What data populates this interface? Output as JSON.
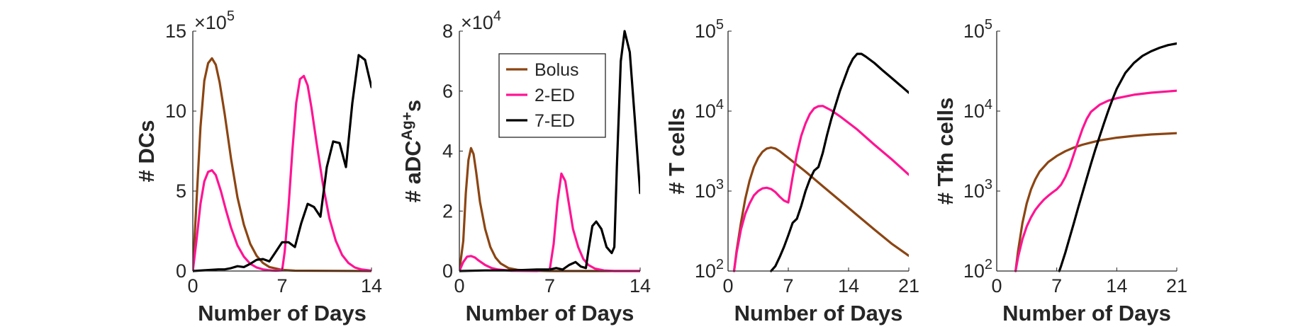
{
  "chart_data": [
    {
      "type": "line",
      "ylabel": "# DCs",
      "xlabel": "Number of Days",
      "y_exponent_label": "×10",
      "y_exponent": "5",
      "xlim": [
        0,
        14
      ],
      "ylim": [
        0,
        15
      ],
      "xticks": [
        0,
        7,
        14
      ],
      "yticks": [
        0,
        5,
        10,
        15
      ],
      "y_scale": "linear",
      "series": [
        {
          "name": "Bolus",
          "color": "#8B4513",
          "x": [
            0,
            0.3,
            0.6,
            0.9,
            1.2,
            1.5,
            1.8,
            2.1,
            2.5,
            3.0,
            3.5,
            4.0,
            4.5,
            5.0,
            5.5,
            6.0,
            7.0,
            8.0,
            14
          ],
          "y": [
            0,
            4.5,
            9.0,
            11.9,
            13.0,
            13.3,
            12.9,
            11.8,
            9.8,
            7.0,
            4.6,
            2.9,
            1.7,
            0.95,
            0.5,
            0.25,
            0.07,
            0.02,
            0
          ]
        },
        {
          "name": "2-ED",
          "color": "#FF1493",
          "x": [
            0,
            0.3,
            0.6,
            0.9,
            1.2,
            1.5,
            1.8,
            2.2,
            2.6,
            3.0,
            3.5,
            4.0,
            4.5,
            5.0,
            5.5,
            6.0,
            6.5,
            7.0,
            7.2,
            7.5,
            7.8,
            8.1,
            8.4,
            8.7,
            9.0,
            9.3,
            9.7,
            10.2,
            10.7,
            11.2,
            11.7,
            12.2,
            12.7,
            13.2,
            14
          ],
          "y": [
            0,
            2.0,
            4.2,
            5.6,
            6.2,
            6.3,
            6.0,
            5.0,
            3.8,
            2.7,
            1.6,
            0.9,
            0.45,
            0.22,
            0.1,
            0.05,
            0.02,
            0.05,
            1.2,
            4.0,
            7.5,
            10.5,
            12.0,
            12.2,
            11.6,
            10.2,
            8.0,
            5.4,
            3.3,
            1.9,
            1.0,
            0.5,
            0.22,
            0.1,
            0.02
          ]
        },
        {
          "name": "7-ED",
          "color": "#000000",
          "x": [
            0,
            1,
            2,
            2.5,
            3,
            3.5,
            4,
            4.5,
            5,
            5.5,
            6,
            6.5,
            7,
            7.5,
            8,
            8.5,
            9,
            9.5,
            10,
            10.5,
            11,
            11.5,
            12,
            12.5,
            13,
            13.5,
            14
          ],
          "y": [
            0,
            0.05,
            0.1,
            0.1,
            0.18,
            0.3,
            0.25,
            0.45,
            0.7,
            0.75,
            0.6,
            1.2,
            1.8,
            1.8,
            1.5,
            3.0,
            4.2,
            4.0,
            3.4,
            6.5,
            8.1,
            8.0,
            6.5,
            10.5,
            13.5,
            13.2,
            11.5
          ]
        }
      ]
    },
    {
      "type": "line",
      "ylabel_main": "# aDC",
      "ylabel_sup": "Ag+",
      "ylabel_end": "s",
      "xlabel": "Number of Days",
      "y_exponent_label": "×10",
      "y_exponent": "4",
      "xlim": [
        0,
        14
      ],
      "ylim": [
        0,
        8
      ],
      "xticks": [
        0,
        7,
        14
      ],
      "yticks": [
        0,
        2,
        4,
        6,
        8
      ],
      "y_scale": "linear",
      "legend": {
        "placement": "top-left",
        "entries": [
          "Bolus",
          "2-ED",
          "7-ED"
        ]
      },
      "series": [
        {
          "name": "Bolus",
          "color": "#8B4513",
          "x": [
            0,
            0.3,
            0.5,
            0.7,
            0.9,
            1.1,
            1.3,
            1.6,
            2.0,
            2.4,
            2.8,
            3.2,
            3.8,
            4.5,
            5.5,
            7,
            14
          ],
          "y": [
            0,
            1.0,
            2.6,
            3.7,
            4.1,
            3.9,
            3.3,
            2.3,
            1.4,
            0.8,
            0.45,
            0.25,
            0.1,
            0.04,
            0.01,
            0,
            0
          ]
        },
        {
          "name": "2-ED",
          "color": "#FF1493",
          "x": [
            0,
            0.3,
            0.6,
            0.9,
            1.2,
            1.5,
            2.0,
            2.5,
            3.0,
            4,
            6,
            7.0,
            7.3,
            7.6,
            7.9,
            8.2,
            8.5,
            8.8,
            9.2,
            9.6,
            10.0,
            10.5,
            11.2,
            12,
            14
          ],
          "y": [
            0,
            0.3,
            0.48,
            0.5,
            0.45,
            0.35,
            0.2,
            0.1,
            0.05,
            0.01,
            0,
            0.05,
            0.9,
            2.3,
            3.25,
            3.0,
            2.2,
            1.4,
            0.8,
            0.4,
            0.2,
            0.08,
            0.02,
            0,
            0
          ]
        },
        {
          "name": "7-ED",
          "color": "#000000",
          "x": [
            0,
            2,
            4,
            6,
            7,
            7.5,
            8,
            8.5,
            9,
            9.4,
            9.8,
            10.0,
            10.3,
            10.6,
            11.0,
            11.4,
            11.8,
            12.0,
            12.2,
            12.5,
            12.8,
            13.2,
            13.6,
            14
          ],
          "y": [
            0,
            0.02,
            0.02,
            0.05,
            0.05,
            0.1,
            0.05,
            0.2,
            0.3,
            0.15,
            0.1,
            0.7,
            1.5,
            1.65,
            1.4,
            0.8,
            0.6,
            0.8,
            3.5,
            7.0,
            8.0,
            7.3,
            5.0,
            2.6
          ]
        }
      ]
    },
    {
      "type": "line",
      "ylabel": "# T cells",
      "xlabel": "Number of Days",
      "xlim": [
        0,
        21
      ],
      "ylim": [
        100,
        100000
      ],
      "xticks": [
        0,
        7,
        14,
        21
      ],
      "yticks": [
        100,
        1000,
        10000,
        100000
      ],
      "ytick_labels": [
        {
          "base": "10",
          "exp": "2"
        },
        {
          "base": "10",
          "exp": "3"
        },
        {
          "base": "10",
          "exp": "4"
        },
        {
          "base": "10",
          "exp": "5"
        }
      ],
      "y_scale": "log",
      "series": [
        {
          "name": "Bolus",
          "color": "#8B4513",
          "x": [
            0.7,
            1.0,
            1.5,
            2.0,
            2.5,
            3.0,
            3.5,
            4.0,
            4.5,
            5.0,
            5.5,
            6.0,
            7.0,
            9.0,
            11.0,
            13.0,
            15.0,
            17.0,
            19.0,
            21.0
          ],
          "y": [
            100,
            180,
            400,
            800,
            1350,
            2000,
            2600,
            3100,
            3400,
            3500,
            3400,
            3150,
            2600,
            1750,
            1150,
            760,
            500,
            330,
            220,
            155
          ]
        },
        {
          "name": "2-ED",
          "color": "#FF1493",
          "x": [
            0.7,
            1.0,
            1.5,
            2.0,
            2.5,
            3.0,
            3.5,
            4.0,
            4.5,
            5.0,
            5.5,
            6.0,
            6.5,
            7.0,
            7.5,
            8.0,
            8.5,
            9.0,
            9.5,
            10.0,
            10.5,
            11.0,
            12.0,
            13.0,
            15.0,
            17.0,
            19.0,
            21.0
          ],
          "y": [
            100,
            170,
            330,
            520,
            700,
            880,
            1000,
            1080,
            1100,
            1060,
            970,
            850,
            760,
            720,
            1500,
            2900,
            4900,
            7000,
            9200,
            10800,
            11500,
            11600,
            10200,
            8600,
            5900,
            3800,
            2500,
            1600
          ]
        },
        {
          "name": "7-ED",
          "color": "#000000",
          "x": [
            5.0,
            5.5,
            6.0,
            6.5,
            7.0,
            7.5,
            8.0,
            8.5,
            9.0,
            9.5,
            10.0,
            10.5,
            11.0,
            11.5,
            12.0,
            13.0,
            14.0,
            14.5,
            15.0,
            15.5,
            16.0,
            17.0,
            18.0,
            19.0,
            20.0,
            21.0
          ],
          "y": [
            100,
            115,
            150,
            200,
            280,
            400,
            450,
            650,
            1000,
            1400,
            1800,
            2000,
            3000,
            5000,
            8000,
            18000,
            35000,
            45000,
            52000,
            52000,
            48000,
            40000,
            32000,
            26000,
            21000,
            17000
          ]
        }
      ]
    },
    {
      "type": "line",
      "ylabel": "# Tfh cells",
      "xlabel": "Number of Days",
      "xlim": [
        0,
        21
      ],
      "ylim": [
        100,
        100000
      ],
      "xticks": [
        0,
        7,
        14,
        21
      ],
      "yticks": [
        100,
        1000,
        10000,
        100000
      ],
      "ytick_labels": [
        {
          "base": "10",
          "exp": "2"
        },
        {
          "base": "10",
          "exp": "3"
        },
        {
          "base": "10",
          "exp": "4"
        },
        {
          "base": "10",
          "exp": "5"
        }
      ],
      "y_scale": "log",
      "series": [
        {
          "name": "Bolus",
          "color": "#8B4513",
          "x": [
            2.2,
            2.5,
            3.0,
            3.5,
            4.0,
            4.5,
            5.0,
            6.0,
            7.0,
            8.0,
            9.0,
            10.0,
            11.0,
            12.0,
            14.0,
            16.0,
            18.0,
            21.0
          ],
          "y": [
            100,
            180,
            400,
            700,
            1050,
            1400,
            1750,
            2300,
            2750,
            3150,
            3500,
            3800,
            4050,
            4300,
            4650,
            4900,
            5100,
            5300
          ]
        },
        {
          "name": "2-ED",
          "color": "#FF1493",
          "x": [
            2.2,
            2.5,
            3.0,
            3.5,
            4.0,
            4.5,
            5.0,
            5.5,
            6.0,
            6.5,
            7.0,
            7.5,
            8.0,
            8.5,
            9.0,
            9.5,
            10.0,
            10.5,
            11.0,
            12.0,
            13.0,
            14.0,
            16.0,
            18.0,
            21.0
          ],
          "y": [
            100,
            150,
            250,
            360,
            470,
            580,
            680,
            780,
            870,
            960,
            1050,
            1200,
            1500,
            2000,
            2900,
            4200,
            6000,
            8000,
            9800,
            12000,
            13500,
            14500,
            16000,
            17000,
            18000
          ]
        },
        {
          "name": "7-ED",
          "color": "#000000",
          "x": [
            7.3,
            7.5,
            8.0,
            8.5,
            9.0,
            9.5,
            10.0,
            10.5,
            11.0,
            11.5,
            12.0,
            12.5,
            13.0,
            13.5,
            14.0,
            15.0,
            16.0,
            17.0,
            18.0,
            19.0,
            20.0,
            21.0
          ],
          "y": [
            100,
            115,
            170,
            260,
            400,
            620,
            950,
            1450,
            2200,
            3300,
            4800,
            7000,
            10000,
            14000,
            19000,
            30000,
            40000,
            49000,
            56000,
            62000,
            67000,
            70000
          ]
        }
      ]
    }
  ]
}
